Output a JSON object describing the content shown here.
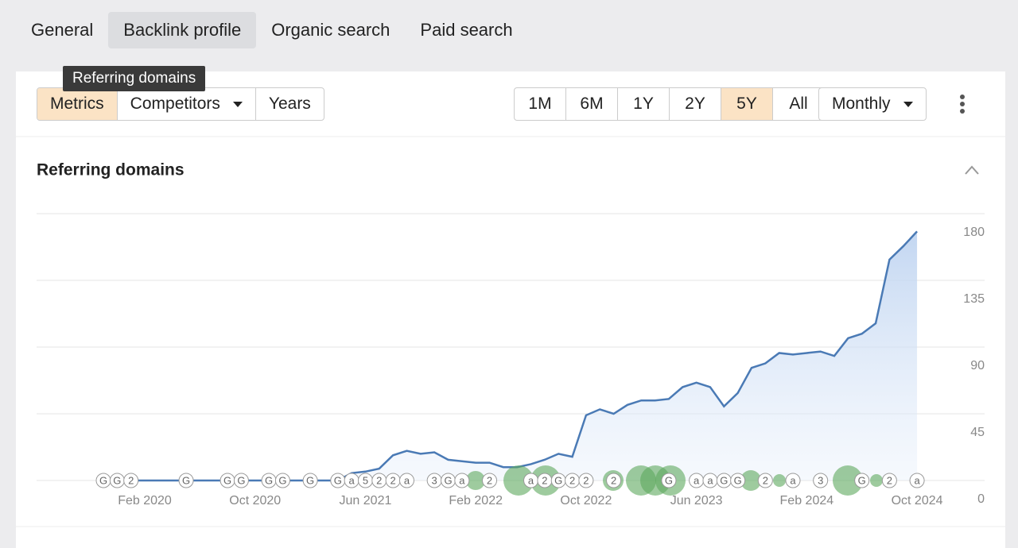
{
  "tabs": [
    "General",
    "Backlink profile",
    "Organic search",
    "Paid search"
  ],
  "active_tab": 1,
  "tooltip": "Referring domains",
  "toolbar": {
    "left": [
      {
        "label": "Metrics",
        "dropdown": false
      },
      {
        "label": "Competitors",
        "dropdown": true
      },
      {
        "label": "Years",
        "dropdown": false
      }
    ],
    "active_left": 0,
    "ranges": [
      "1M",
      "6M",
      "1Y",
      "2Y",
      "5Y",
      "All"
    ],
    "active_range": 4,
    "interval": {
      "label": "Monthly",
      "dropdown": true
    }
  },
  "chart_data": {
    "type": "line",
    "title": "Referring domains",
    "color": "#4a7ab5",
    "area": true,
    "x": [
      "2019-11",
      "2019-12",
      "2020-01",
      "2020-02",
      "2020-03",
      "2020-04",
      "2020-05",
      "2020-06",
      "2020-07",
      "2020-08",
      "2020-09",
      "2020-10",
      "2020-11",
      "2020-12",
      "2021-01",
      "2021-02",
      "2021-03",
      "2021-04",
      "2021-05",
      "2021-06",
      "2021-07",
      "2021-08",
      "2021-09",
      "2021-10",
      "2021-11",
      "2021-12",
      "2022-01",
      "2022-02",
      "2022-03",
      "2022-04",
      "2022-05",
      "2022-06",
      "2022-07",
      "2022-08",
      "2022-09",
      "2022-10",
      "2022-11",
      "2022-12",
      "2023-01",
      "2023-02",
      "2023-03",
      "2023-04",
      "2023-05",
      "2023-06",
      "2023-07",
      "2023-08",
      "2023-09",
      "2023-10",
      "2023-11",
      "2023-12",
      "2024-01",
      "2024-02",
      "2024-03",
      "2024-04",
      "2024-05",
      "2024-06",
      "2024-07",
      "2024-08",
      "2024-09",
      "2024-10"
    ],
    "values": [
      0,
      0,
      0,
      0,
      0,
      0,
      0,
      0,
      0,
      0,
      0,
      0,
      0,
      0,
      0,
      0,
      0,
      0,
      5,
      6,
      8,
      17,
      20,
      18,
      19,
      14,
      13,
      12,
      12,
      9,
      9,
      11,
      14,
      18,
      16,
      44,
      48,
      45,
      51,
      54,
      54,
      55,
      63,
      66,
      63,
      50,
      59,
      76,
      79,
      86,
      85,
      86,
      87,
      84,
      96,
      99,
      106,
      149,
      158,
      168
    ],
    "xticks": [
      {
        "value": "2020-02",
        "label": "Feb 2020"
      },
      {
        "value": "2020-10",
        "label": "Oct 2020"
      },
      {
        "value": "2021-06",
        "label": "Jun 2021"
      },
      {
        "value": "2022-02",
        "label": "Feb 2022"
      },
      {
        "value": "2022-10",
        "label": "Oct 2022"
      },
      {
        "value": "2023-06",
        "label": "Jun 2023"
      },
      {
        "value": "2024-02",
        "label": "Feb 2024"
      },
      {
        "value": "2024-10",
        "label": "Oct 2024"
      }
    ],
    "ylim": [
      0,
      180
    ],
    "yticks": [
      0,
      45,
      90,
      135,
      180
    ],
    "grid": true,
    "annotations": [
      {
        "x": "2019-11",
        "label": "G"
      },
      {
        "x": "2019-12",
        "label": "G"
      },
      {
        "x": "2020-01",
        "label": "2"
      },
      {
        "x": "2020-05",
        "label": "G"
      },
      {
        "x": "2020-08",
        "label": "G"
      },
      {
        "x": "2020-09",
        "label": "G"
      },
      {
        "x": "2020-11",
        "label": "G"
      },
      {
        "x": "2020-12",
        "label": "G"
      },
      {
        "x": "2021-02",
        "label": "G"
      },
      {
        "x": "2021-04",
        "label": "G"
      },
      {
        "x": "2021-05",
        "label": "a"
      },
      {
        "x": "2021-06",
        "label": "5"
      },
      {
        "x": "2021-07",
        "label": "2"
      },
      {
        "x": "2021-08",
        "label": "2"
      },
      {
        "x": "2021-09",
        "label": "a"
      },
      {
        "x": "2021-11",
        "label": "3"
      },
      {
        "x": "2021-12",
        "label": "G"
      },
      {
        "x": "2022-01",
        "label": "a"
      },
      {
        "x": "2022-03",
        "label": "2"
      },
      {
        "x": "2022-06",
        "label": "a"
      },
      {
        "x": "2022-07",
        "label": "2"
      },
      {
        "x": "2022-08",
        "label": "G"
      },
      {
        "x": "2022-09",
        "label": "2"
      },
      {
        "x": "2022-10",
        "label": "2"
      },
      {
        "x": "2022-12",
        "label": "2"
      },
      {
        "x": "2023-04",
        "label": "G"
      },
      {
        "x": "2023-06",
        "label": "a"
      },
      {
        "x": "2023-07",
        "label": "a"
      },
      {
        "x": "2023-08",
        "label": "G"
      },
      {
        "x": "2023-09",
        "label": "G"
      },
      {
        "x": "2023-11",
        "label": "2"
      },
      {
        "x": "2024-01",
        "label": "a"
      },
      {
        "x": "2024-03",
        "label": "3"
      },
      {
        "x": "2024-06",
        "label": "G"
      },
      {
        "x": "2024-08",
        "label": "2"
      },
      {
        "x": "2024-10",
        "label": "a"
      }
    ]
  }
}
